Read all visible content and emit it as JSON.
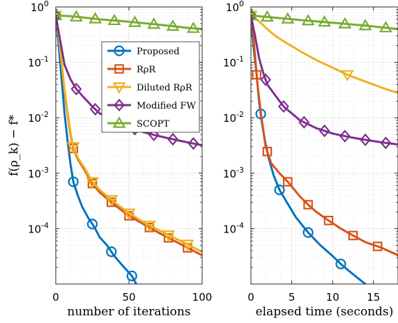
{
  "chart_data": [
    {
      "type": "line",
      "xlabel": "number of iterations",
      "ylabel": "f(ρ_k) − f*",
      "xlim": [
        0,
        100
      ],
      "ylim_exp": [
        -5,
        0
      ],
      "yscale": "log",
      "grid": true,
      "x_ticks": [
        {
          "value": 0,
          "label": "0"
        },
        {
          "value": 50,
          "label": "50"
        },
        {
          "value": 100,
          "label": "100"
        }
      ],
      "y_ticks": [
        {
          "exp": 0,
          "label": "10",
          "sup": "0"
        },
        {
          "exp": -1,
          "label": "10",
          "sup": "-1"
        },
        {
          "exp": -2,
          "label": "10",
          "sup": "-2"
        },
        {
          "exp": -3,
          "label": "10",
          "sup": "-3"
        },
        {
          "exp": -4,
          "label": "10",
          "sup": "-4"
        }
      ],
      "legend": {
        "placement": "top-right",
        "entries": [
          {
            "label": "Proposed",
            "series": "proposed"
          },
          {
            "label": "RρR",
            "series": "rpr"
          },
          {
            "label": "Diluted RρR",
            "series": "diluted"
          },
          {
            "label": "Modified FW",
            "series": "mfw"
          },
          {
            "label": "SCOPT",
            "series": "scopt"
          }
        ]
      },
      "series": [
        {
          "key": "proposed",
          "name": "Proposed",
          "color": "#0072BD",
          "marker": "circle",
          "x": [
            0,
            2,
            4,
            6,
            8,
            10,
            12,
            15,
            18,
            22,
            26,
            30,
            35,
            40,
            46,
            52,
            55
          ],
          "y": [
            0.7,
            0.2,
            0.05,
            0.012,
            0.004,
            0.0015,
            0.0007,
            0.0004,
            0.00025,
            0.00016,
            0.00011,
            7e-05,
            5e-05,
            3.2e-05,
            2.1e-05,
            1.4e-05,
            1e-05
          ],
          "markers_x": [
            0,
            12,
            25,
            38,
            52
          ]
        },
        {
          "key": "rpr",
          "name": "RρR",
          "color": "#D95319",
          "marker": "square",
          "x": [
            0,
            2,
            4,
            6,
            8,
            10,
            12,
            15,
            20,
            25,
            30,
            40,
            50,
            60,
            70,
            80,
            90,
            100
          ],
          "y": [
            0.7,
            0.3,
            0.1,
            0.03,
            0.012,
            0.005,
            0.0028,
            0.0018,
            0.0011,
            0.00065,
            0.00045,
            0.00027,
            0.00017,
            0.00012,
            8.5e-05,
            6.2e-05,
            4.5e-05,
            3.3e-05
          ],
          "markers_x": [
            0,
            12,
            25,
            38,
            50,
            64,
            77,
            90
          ]
        },
        {
          "key": "diluted",
          "name": "Diluted RρR",
          "color": "#EDB120",
          "marker": "triangle-down",
          "x": [
            0,
            2,
            4,
            6,
            8,
            10,
            12,
            15,
            20,
            25,
            30,
            40,
            50,
            60,
            70,
            80,
            90,
            100
          ],
          "y": [
            0.7,
            0.3,
            0.1,
            0.032,
            0.013,
            0.0055,
            0.003,
            0.0019,
            0.0012,
            0.0007,
            0.0005,
            0.0003,
            0.00019,
            0.00013,
            9.5e-05,
            7e-05,
            5.2e-05,
            3.8e-05
          ],
          "markers_x": [
            0,
            12,
            25,
            38,
            50,
            64,
            77,
            90
          ]
        },
        {
          "key": "mfw",
          "name": "Modified FW",
          "color": "#7E2F8E",
          "marker": "diamond",
          "x": [
            0,
            3,
            6,
            10,
            14,
            20,
            25,
            30,
            40,
            50,
            60,
            70,
            80,
            90,
            100
          ],
          "y": [
            0.7,
            0.25,
            0.09,
            0.05,
            0.033,
            0.022,
            0.016,
            0.012,
            0.009,
            0.0068,
            0.0055,
            0.0047,
            0.0041,
            0.0036,
            0.0032
          ],
          "markers_x": [
            0,
            14,
            27,
            40,
            54,
            67,
            80,
            94
          ]
        },
        {
          "key": "scopt",
          "name": "SCOPT",
          "color": "#77AC30",
          "marker": "triangle-up",
          "x": [
            0,
            10,
            20,
            30,
            40,
            50,
            60,
            70,
            80,
            90,
            100
          ],
          "y": [
            0.7,
            0.68,
            0.64,
            0.6,
            0.57,
            0.54,
            0.51,
            0.48,
            0.45,
            0.42,
            0.4
          ],
          "markers_x": [
            0,
            14,
            27,
            40,
            54,
            67,
            80,
            94
          ]
        }
      ]
    },
    {
      "type": "line",
      "xlabel": "elapsed time (seconds)",
      "ylabel": "",
      "xlim": [
        0,
        18
      ],
      "ylim_exp": [
        -5,
        0
      ],
      "yscale": "log",
      "grid": true,
      "x_ticks": [
        {
          "value": 0,
          "label": "0"
        },
        {
          "value": 5,
          "label": "5"
        },
        {
          "value": 10,
          "label": "10"
        },
        {
          "value": 15,
          "label": "15"
        }
      ],
      "y_ticks": [
        {
          "exp": 0,
          "label": "10",
          "sup": "0"
        },
        {
          "exp": -1,
          "label": "10",
          "sup": "-1"
        },
        {
          "exp": -2,
          "label": "10",
          "sup": "-2"
        },
        {
          "exp": -3,
          "label": "10",
          "sup": "-3"
        },
        {
          "exp": -4,
          "label": "10",
          "sup": "-4"
        }
      ],
      "series": [
        {
          "key": "proposed",
          "name": "Proposed",
          "color": "#0072BD",
          "marker": "circle",
          "x": [
            0,
            0.3,
            0.7,
            1.0,
            1.3,
            1.7,
            2.2,
            2.8,
            3.5,
            4.5,
            5.5,
            7.0,
            8.5,
            10.0,
            11.0,
            12.5,
            14.0
          ],
          "y": [
            0.7,
            0.2,
            0.06,
            0.02,
            0.009,
            0.004,
            0.0018,
            0.0009,
            0.0005,
            0.00028,
            0.00016,
            8.5e-05,
            5e-05,
            3.2e-05,
            2.3e-05,
            1.5e-05,
            1e-05
          ],
          "markers_x": [
            0,
            1.2,
            3.5,
            7.0,
            11.0
          ]
        },
        {
          "key": "rpr",
          "name": "RρR",
          "color": "#D95319",
          "marker": "square",
          "x": [
            0,
            0.4,
            0.8,
            1.3,
            1.8,
            2.5,
            3.5,
            4.5,
            6,
            7,
            8,
            9.5,
            11,
            12.5,
            14,
            16,
            18
          ],
          "y": [
            0.7,
            0.2,
            0.04,
            0.01,
            0.003,
            0.0015,
            0.001,
            0.0007,
            0.00038,
            0.00027,
            0.0002,
            0.00014,
            0.0001,
            7.5e-05,
            5.7e-05,
            4.5e-05,
            3.3e-05
          ],
          "markers_x": [
            0,
            0.7,
            2.0,
            4.5,
            7.0,
            9.5,
            12.5,
            15.5
          ]
        },
        {
          "key": "diluted",
          "name": "Diluted RρR",
          "color": "#EDB120",
          "marker": "triangle-down",
          "x": [
            0,
            1,
            2,
            3,
            4,
            6,
            8,
            10,
            12,
            14,
            16,
            18
          ],
          "y": [
            0.7,
            0.55,
            0.4,
            0.3,
            0.24,
            0.16,
            0.11,
            0.08,
            0.058,
            0.045,
            0.035,
            0.028
          ],
          "markers_x": [
            0,
            11.8
          ]
        },
        {
          "key": "mfw",
          "name": "Modified FW",
          "color": "#7E2F8E",
          "marker": "diamond",
          "x": [
            0,
            0.5,
            1.0,
            1.5,
            2.0,
            3.0,
            4.0,
            6.0,
            8.0,
            10.0,
            12.0,
            14.0,
            16.0,
            18.0
          ],
          "y": [
            0.7,
            0.3,
            0.12,
            0.065,
            0.04,
            0.025,
            0.016,
            0.009,
            0.0065,
            0.0052,
            0.0045,
            0.004,
            0.0036,
            0.0033
          ],
          "markers_x": [
            0,
            1.8,
            4.0,
            6.5,
            9.0,
            11.5,
            14.0,
            16.5
          ]
        },
        {
          "key": "scopt",
          "name": "SCOPT",
          "color": "#77AC30",
          "marker": "triangle-up",
          "x": [
            0,
            2,
            4,
            6,
            8,
            10,
            12,
            14,
            16,
            18
          ],
          "y": [
            0.7,
            0.66,
            0.62,
            0.58,
            0.55,
            0.52,
            0.49,
            0.46,
            0.43,
            0.4
          ],
          "markers_x": [
            0,
            2.0,
            4.5,
            7.0,
            9.0,
            11.5,
            14.0,
            16.5
          ]
        }
      ]
    }
  ]
}
